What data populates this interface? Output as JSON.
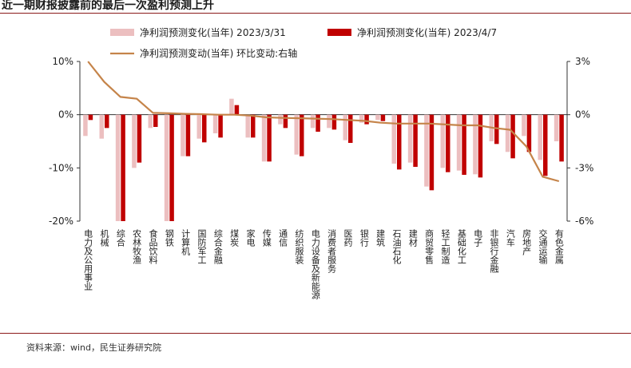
{
  "title": "近一期财报披露前的最后一次盈利预测上升",
  "source": "资料来源：wind，民生证券研究院",
  "chart_data": {
    "type": "bar",
    "categories": [
      "电力及公用事业",
      "机械",
      "综合",
      "农林牧渔",
      "食品饮料",
      "钢铁",
      "计算机",
      "国防军工",
      "综合金融",
      "煤炭",
      "家电",
      "传媒",
      "通信",
      "纺织服装",
      "电力设备及新能源",
      "消费者服务",
      "医药",
      "银行",
      "建筑",
      "石油石化",
      "建材",
      "商贸零售",
      "轻工制造",
      "基础化工",
      "电子",
      "非银行金融",
      "汽车",
      "房地产",
      "交通运输",
      "有色金属"
    ],
    "series": [
      {
        "name": "净利润预测变化(当年) 2023/3/31",
        "axis": "left",
        "color": "#ecbfc0",
        "values": [
          -4.0,
          -4.5,
          -20.5,
          -10.0,
          -2.5,
          -20.5,
          -7.8,
          -4.5,
          -3.5,
          3.0,
          -4.3,
          -8.8,
          -1.8,
          -7.5,
          -2.5,
          -2.5,
          -4.8,
          -1.5,
          -1.0,
          -9.2,
          -9.0,
          -13.5,
          -10.0,
          -10.5,
          -11.2,
          -5.0,
          -7.0,
          -4.0,
          -8.5,
          -5.0
        ]
      },
      {
        "name": "净利润预测变化(当年) 2023/4/7",
        "axis": "left",
        "color": "#c00000",
        "values": [
          -1.0,
          -2.5,
          -20.5,
          -9.0,
          -2.3,
          -20.5,
          -7.8,
          -5.2,
          -4.3,
          1.8,
          -4.3,
          -8.8,
          -2.5,
          -7.8,
          -3.2,
          -2.8,
          -5.3,
          -1.8,
          -1.2,
          -10.3,
          -9.8,
          -14.2,
          -10.8,
          -11.3,
          -11.8,
          -5.5,
          -8.2,
          -7.0,
          -11.5,
          -8.8
        ]
      },
      {
        "name": "净利润预测变动(当年) 环比变动:右轴",
        "axis": "right",
        "color": "#c5844a",
        "type": "line",
        "values": [
          3.0,
          1.85,
          1.0,
          0.9,
          0.1,
          0.08,
          0.05,
          0.03,
          0.0,
          0.0,
          -0.05,
          -0.15,
          -0.18,
          -0.2,
          -0.22,
          -0.25,
          -0.3,
          -0.35,
          -0.45,
          -0.5,
          -0.5,
          -0.5,
          -0.55,
          -0.6,
          -0.6,
          -0.75,
          -0.85,
          -1.8,
          -3.5,
          -3.75
        ]
      }
    ],
    "legend": [
      "净利润预测变化(当年) 2023/3/31",
      "净利润预测变化(当年) 2023/4/7",
      "净利润预测变动(当年) 环比变动:右轴"
    ],
    "ylim": [
      -20,
      10
    ],
    "yticks": [
      "10%",
      "0%",
      "-10%",
      "-20%"
    ],
    "y2lim": [
      -6,
      3
    ],
    "y2ticks": [
      "3%",
      "0%",
      "-3%",
      "-6%"
    ],
    "grid": false,
    "legend_position": "top"
  }
}
